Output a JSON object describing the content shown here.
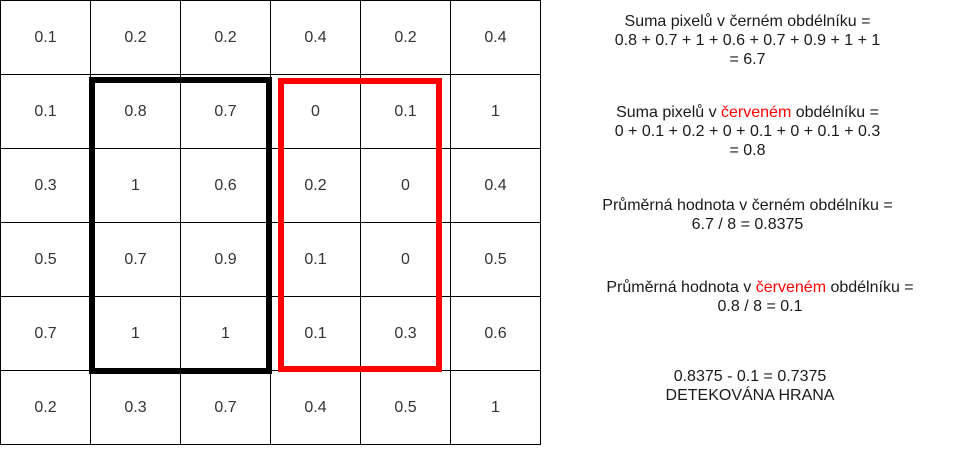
{
  "grid": {
    "rows": [
      [
        "0.1",
        "0.2",
        "0.2",
        "0.4",
        "0.2",
        "0.4"
      ],
      [
        "0.1",
        "0.8",
        "0.7",
        "0",
        "0.1",
        "1"
      ],
      [
        "0.3",
        "1",
        "0.6",
        "0.2",
        "0",
        "0.4"
      ],
      [
        "0.5",
        "0.7",
        "0.9",
        "0.1",
        "0",
        "0.5"
      ],
      [
        "0.7",
        "1",
        "1",
        "0.1",
        "0.3",
        "0.6"
      ],
      [
        "0.2",
        "0.3",
        "0.7",
        "0.4",
        "0.5",
        "1"
      ]
    ]
  },
  "colors": {
    "black_rect": "#000000",
    "red_rect": "#ff0000",
    "highlight_text": "#ff0000"
  },
  "notes": {
    "black_sum": {
      "line1": "Suma pixelů v černém obdélníku =",
      "line2": "0.8 + 0.7 + 1 + 0.6 + 0.7 + 0.9 + 1 + 1",
      "line3": "= 6.7"
    },
    "red_sum": {
      "line1_prefix": "Suma pixelů v ",
      "line1_highlight": "červeném",
      "line1_suffix": " obdélníku =",
      "line2": "0 + 0.1 + 0.2 + 0 + 0.1 + 0 + 0.1 + 0.3",
      "line3": "= 0.8"
    },
    "black_avg": {
      "line1": "Průměrná hodnota v černém obdélníku =",
      "line2": "6.7 / 8 = 0.8375"
    },
    "red_avg": {
      "line1_prefix": "Průměrná hodnota v ",
      "line1_highlight": "červeném",
      "line1_suffix": " obdélníku =",
      "line2": "0.8 / 8 = 0.1"
    },
    "result": {
      "line1": "0.8375 - 0.1 = 0.7375",
      "line2": "DETEKOVÁNA HRANA"
    }
  }
}
